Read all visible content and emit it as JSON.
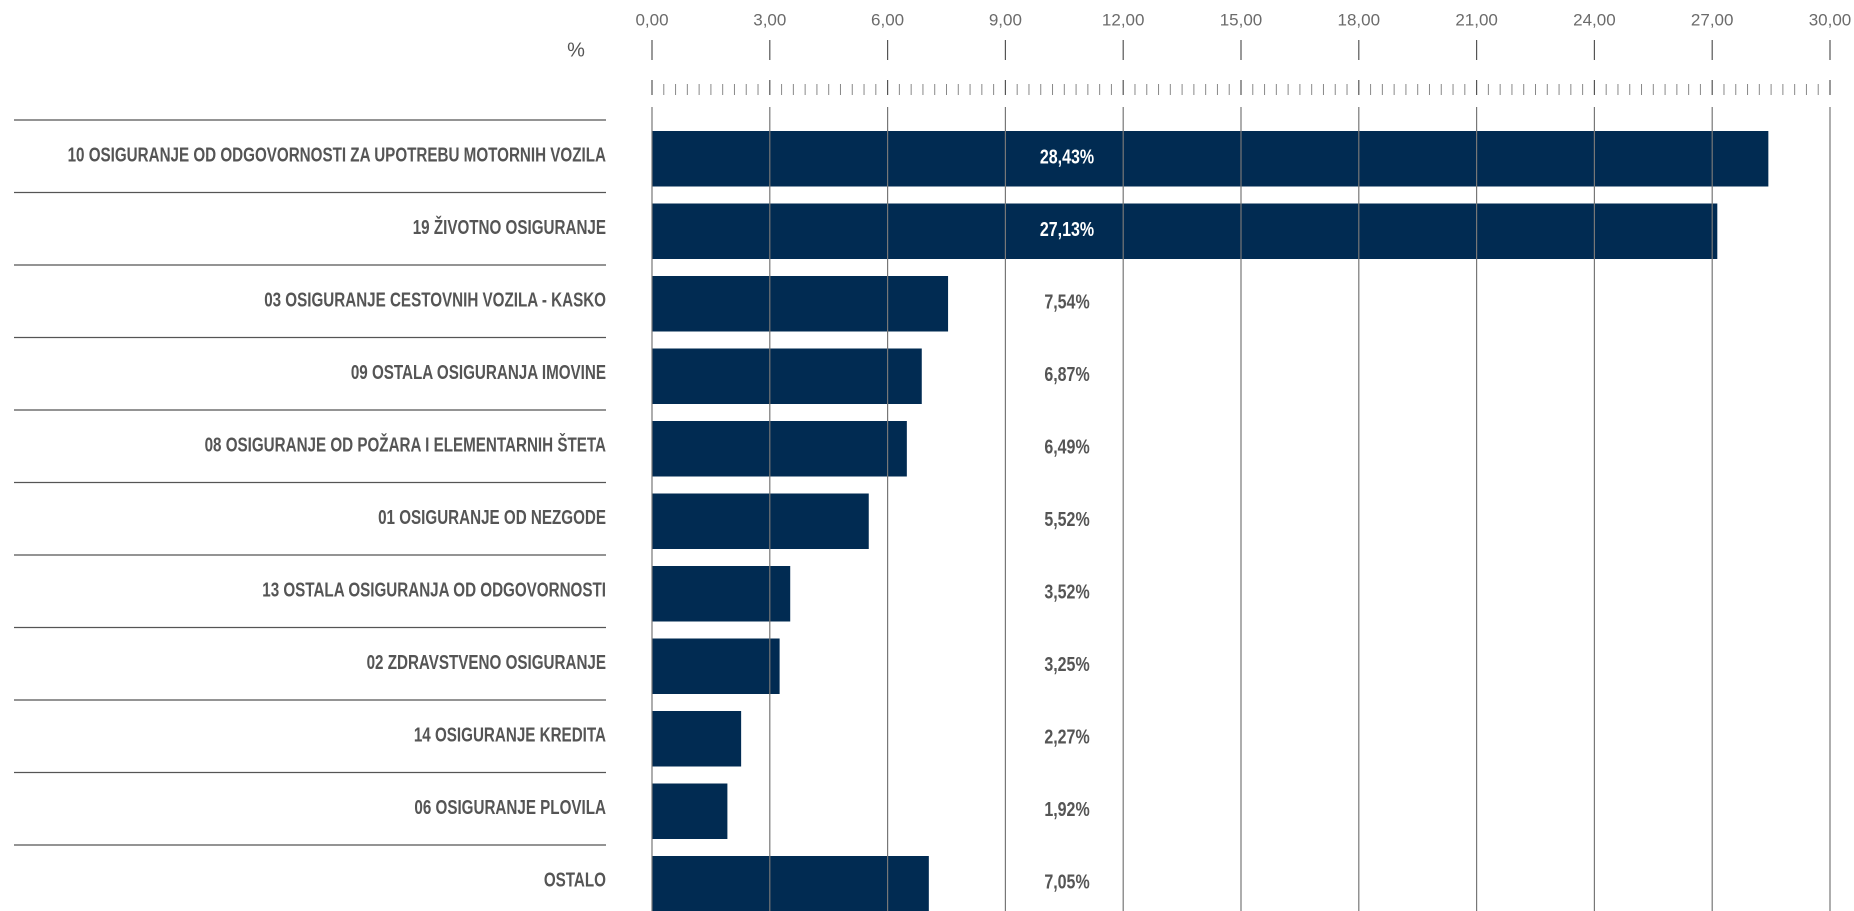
{
  "chart_data": {
    "type": "barh",
    "xlabel": "%",
    "categories": [
      "10 OSIGURANJE OD ODGOVORNOSTI ZA UPOTREBU MOTORNIH VOZILA",
      "19 ŽIVOTNO OSIGURANJE",
      "03 OSIGURANJE CESTOVNIH VOZILA - KASKO",
      "09 OSTALA OSIGURANJA IMOVINE",
      "08 OSIGURANJE OD POŽARA I ELEMENTARNIH ŠTETA",
      "01 OSIGURANJE OD NEZGODE",
      "13 OSTALA OSIGURANJA OD ODGOVORNOSTI",
      "02 ZDRAVSTVENO OSIGURANJE",
      "14 OSIGURANJE KREDITA",
      "06 OSIGURANJE PLOVILA",
      "OSTALO"
    ],
    "values": [
      28.43,
      27.13,
      7.54,
      6.87,
      6.49,
      5.52,
      3.52,
      3.25,
      2.27,
      1.92,
      7.05
    ],
    "value_labels": [
      "28,43%",
      "27,13%",
      "7,54%",
      "6,87%",
      "6,49%",
      "5,52%",
      "3,52%",
      "3,25%",
      "2,27%",
      "1,92%",
      "7,05%"
    ],
    "color": "#012b52",
    "xlim": [
      0,
      30
    ],
    "xticks": [
      {
        "value": 0,
        "label": "0,00"
      },
      {
        "value": 3,
        "label": "3,00"
      },
      {
        "value": 6,
        "label": "6,00"
      },
      {
        "value": 9,
        "label": "9,00"
      },
      {
        "value": 12,
        "label": "12,00"
      },
      {
        "value": 15,
        "label": "15,00"
      },
      {
        "value": 18,
        "label": "18,00"
      },
      {
        "value": 21,
        "label": "21,00"
      },
      {
        "value": 24,
        "label": "24,00"
      },
      {
        "value": 27,
        "label": "27,00"
      },
      {
        "value": 30,
        "label": "30,00"
      }
    ],
    "grid": true
  }
}
